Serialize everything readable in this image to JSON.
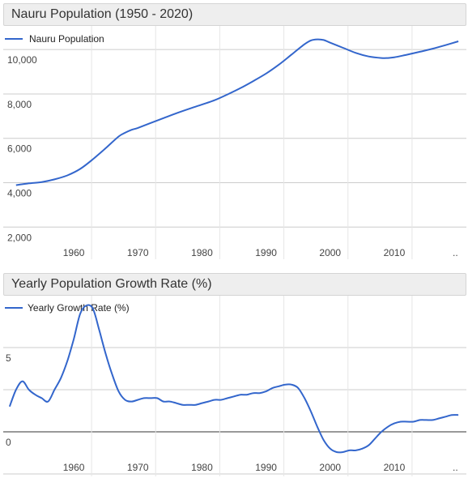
{
  "charts": [
    {
      "title": "Nauru Population (1950 - 2020)",
      "legend": "Nauru Population",
      "y_tick_labels": [
        "2,000",
        "4,000",
        "6,000",
        "8,000",
        "10,000"
      ],
      "x_tick_labels": [
        "1960",
        "1970",
        "1980",
        "1990",
        "2000",
        "2010"
      ],
      "x_end_marker": ".."
    },
    {
      "title": "Yearly Population Growth Rate (%)",
      "legend": "Yearly Growth Rate (%)",
      "y_tick_labels": [
        "0",
        "5"
      ],
      "x_tick_labels": [
        "1960",
        "1970",
        "1980",
        "1990",
        "2000",
        "2010"
      ],
      "x_end_marker": ".."
    }
  ],
  "chart_data": [
    {
      "type": "line",
      "title": "Nauru Population (1950 - 2020)",
      "xlabel": "",
      "ylabel": "",
      "series": [
        {
          "name": "Nauru Population",
          "color": "#3366cc",
          "x": [
            1951,
            1953,
            1955,
            1957,
            1959,
            1961,
            1963,
            1965,
            1967,
            1968,
            1969,
            1970,
            1972,
            1974,
            1976,
            1978,
            1980,
            1982,
            1984,
            1986,
            1988,
            1990,
            1992,
            1994,
            1996,
            1997,
            1998,
            1999,
            2000,
            2002,
            2004,
            2006,
            2008,
            2009,
            2010,
            2012,
            2014,
            2016,
            2018,
            2020
          ],
          "y": [
            3890,
            3970,
            4030,
            4150,
            4330,
            4620,
            5060,
            5560,
            6080,
            6250,
            6380,
            6470,
            6690,
            6910,
            7130,
            7330,
            7520,
            7720,
            7980,
            8260,
            8580,
            8920,
            9320,
            9780,
            10240,
            10410,
            10460,
            10430,
            10310,
            10080,
            9850,
            9690,
            9620,
            9620,
            9650,
            9770,
            9900,
            10040,
            10200,
            10370
          ]
        }
      ],
      "xlim": [
        1949,
        2021
      ],
      "ylim": [
        1500,
        10700
      ],
      "grid": true,
      "legend_position": "top-left"
    },
    {
      "type": "line",
      "title": "Yearly Population Growth Rate (%)",
      "xlabel": "",
      "ylabel": "",
      "series": [
        {
          "name": "Yearly Growth Rate (%)",
          "color": "#3366cc",
          "x": [
            1950,
            1951,
            1952,
            1953,
            1954,
            1955,
            1956,
            1957,
            1958,
            1959,
            1960,
            1961,
            1962,
            1963,
            1964,
            1965,
            1966,
            1967,
            1968,
            1969,
            1970,
            1971,
            1972,
            1973,
            1974,
            1975,
            1976,
            1977,
            1978,
            1979,
            1980,
            1981,
            1982,
            1983,
            1984,
            1985,
            1986,
            1987,
            1988,
            1989,
            1990,
            1991,
            1992,
            1993,
            1994,
            1995,
            1996,
            1997,
            1998,
            1999,
            2000,
            2001,
            2002,
            2003,
            2004,
            2005,
            2006,
            2007,
            2008,
            2009,
            2010,
            2011,
            2012,
            2013,
            2014,
            2015,
            2016,
            2017,
            2018,
            2019,
            2020
          ],
          "y": [
            1.5,
            2.5,
            3.0,
            2.5,
            2.2,
            2.0,
            1.8,
            2.5,
            3.2,
            4.2,
            5.5,
            7.0,
            7.5,
            7.3,
            6.0,
            4.6,
            3.4,
            2.4,
            1.9,
            1.8,
            1.9,
            2.0,
            2.0,
            2.0,
            1.8,
            1.8,
            1.7,
            1.6,
            1.6,
            1.6,
            1.7,
            1.8,
            1.9,
            1.9,
            2.0,
            2.1,
            2.2,
            2.2,
            2.3,
            2.3,
            2.4,
            2.6,
            2.7,
            2.8,
            2.8,
            2.6,
            2.0,
            1.2,
            0.3,
            -0.5,
            -1.0,
            -1.2,
            -1.2,
            -1.1,
            -1.1,
            -1.0,
            -0.8,
            -0.4,
            0.0,
            0.3,
            0.5,
            0.6,
            0.6,
            0.6,
            0.7,
            0.7,
            0.7,
            0.8,
            0.9,
            1.0,
            1.0
          ]
        }
      ],
      "xlim": [
        1949,
        2021
      ],
      "ylim": [
        -2.5,
        7.5
      ],
      "grid": true,
      "legend_position": "top-left"
    }
  ]
}
